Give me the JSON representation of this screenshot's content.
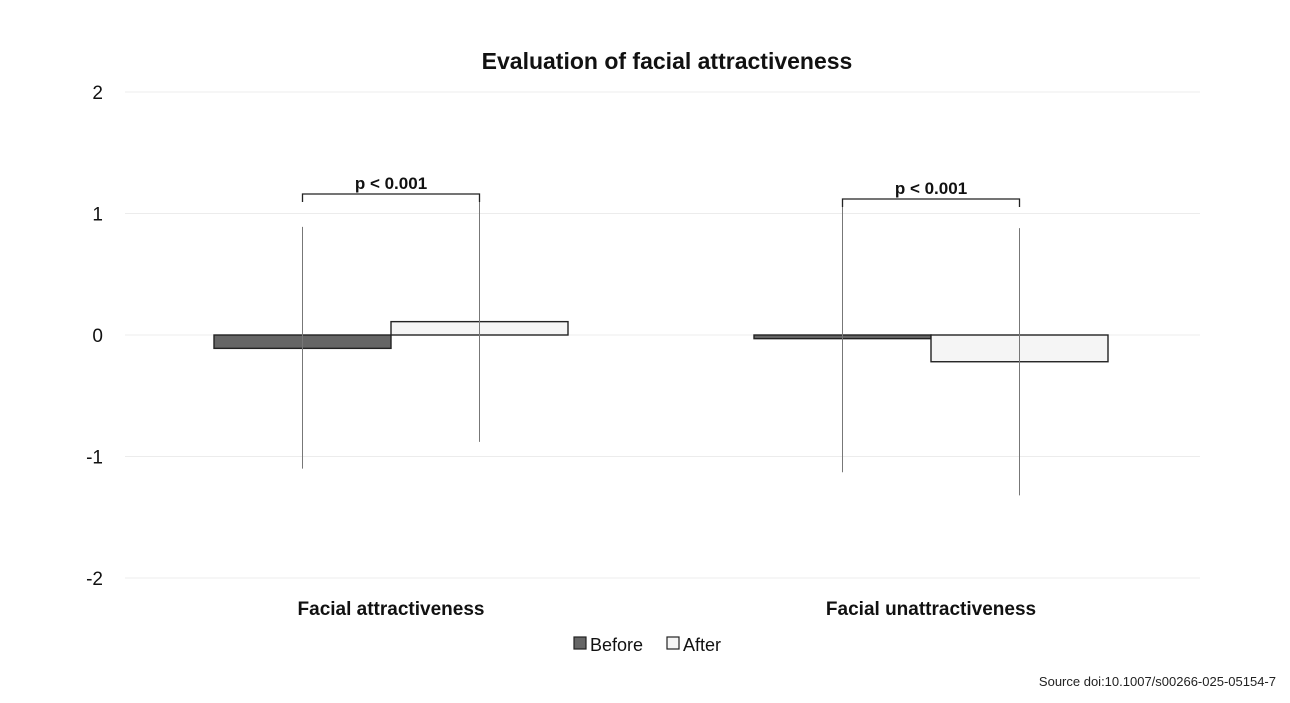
{
  "chart_data": {
    "type": "bar",
    "title": "Evaluation of facial attractiveness",
    "categories": [
      "Facial attractiveness",
      "Facial unattractiveness"
    ],
    "series": [
      {
        "name": "Before",
        "values": [
          -0.11,
          -0.03
        ],
        "error_low": [
          -1.1,
          -1.13
        ],
        "error_high": [
          0.89,
          1.06
        ],
        "fill": "#666666",
        "stroke": "#222222"
      },
      {
        "name": "After",
        "values": [
          0.11,
          -0.22
        ],
        "error_low": [
          -0.88,
          -1.32
        ],
        "error_high": [
          1.1,
          0.88
        ],
        "fill": "#f5f5f5",
        "stroke": "#222222"
      }
    ],
    "ylim": [
      -2,
      2
    ],
    "yticks": [
      "2",
      "1",
      "0",
      "-1",
      "-2"
    ],
    "grid": true,
    "legend": "bottom-center",
    "annotations": [
      {
        "text": "p < 0.001",
        "category_index": 0
      },
      {
        "text": "p < 0.001",
        "category_index": 1
      }
    ]
  },
  "source": "Source doi:10.1007/s00266-025-05154-7"
}
